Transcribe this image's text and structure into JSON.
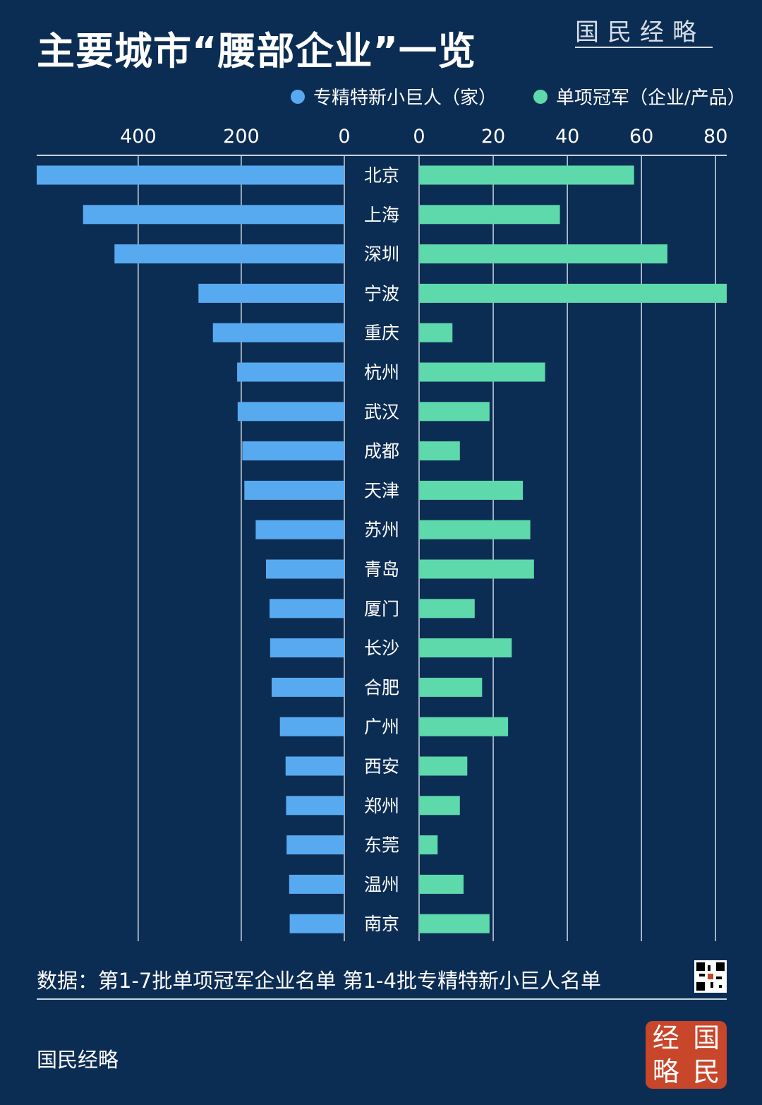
{
  "title": "主要城市“腰部企业”一览",
  "brand": "国民经略",
  "legend": {
    "left": "专精特新小巨人（家）",
    "right": "单项冠军（企业/产品）"
  },
  "colors": {
    "background": "#0c2d53",
    "left_bar": "#58aaf0",
    "right_bar": "#5dd9ab",
    "grid": "#c9d3df"
  },
  "source": "数据：第1-7批单项冠军企业名单 第1-4批专精特新小巨人名单",
  "footer": "国民经略",
  "seal_chars": [
    "经",
    "国",
    "略",
    "民"
  ],
  "chart_data": {
    "type": "bar",
    "orientation": "horizontal-butterfly",
    "categories": [
      "北京",
      "上海",
      "深圳",
      "宁波",
      "重庆",
      "杭州",
      "武汉",
      "成都",
      "天津",
      "苏州",
      "青岛",
      "厦门",
      "长沙",
      "合肥",
      "广州",
      "西安",
      "郑州",
      "东莞",
      "温州",
      "南京"
    ],
    "series": [
      {
        "name": "专精特新小巨人（家）",
        "side": "left",
        "values": [
          597,
          507,
          446,
          283,
          255,
          208,
          207,
          198,
          194,
          172,
          152,
          145,
          144,
          141,
          125,
          114,
          113,
          112,
          107,
          106
        ],
        "xlim": [
          0,
          597
        ],
        "ticks": [
          400,
          200,
          0
        ]
      },
      {
        "name": "单项冠军（企业/产品）",
        "side": "right",
        "values": [
          58,
          38,
          67,
          83,
          9,
          34,
          19,
          11,
          28,
          30,
          31,
          15,
          25,
          17,
          24,
          13,
          11,
          5,
          12,
          19
        ],
        "xlim": [
          0,
          83
        ],
        "ticks": [
          0,
          20,
          40,
          60,
          80
        ]
      }
    ]
  }
}
